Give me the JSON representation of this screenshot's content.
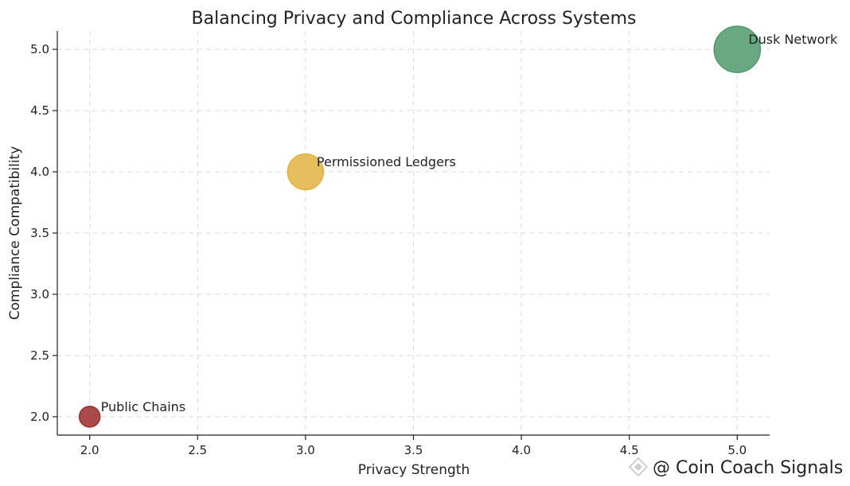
{
  "chart_data": {
    "type": "scatter",
    "title": "Balancing Privacy and Compliance Across Systems",
    "xlabel": "Privacy Strength",
    "ylabel": "Compliance Compatibility",
    "xlim": [
      1.85,
      5.15
    ],
    "ylim": [
      1.85,
      5.15
    ],
    "xticks": [
      "2.0",
      "2.5",
      "3.0",
      "3.5",
      "4.0",
      "4.5",
      "5.0"
    ],
    "yticks": [
      "2.0",
      "2.5",
      "3.0",
      "3.5",
      "4.0",
      "4.5",
      "5.0"
    ],
    "grid": true,
    "points": [
      {
        "label": "Public Chains",
        "x": 2,
        "y": 2,
        "size": 1,
        "color": "#9b2c2c"
      },
      {
        "label": "Permissioned Ledgers",
        "x": 3,
        "y": 4,
        "size": 3,
        "color": "#e3b341"
      },
      {
        "label": "Dusk Network",
        "x": 5,
        "y": 5,
        "size": 5,
        "color": "#4f9a6c"
      }
    ]
  },
  "watermark": "@ Coin Coach Signals"
}
